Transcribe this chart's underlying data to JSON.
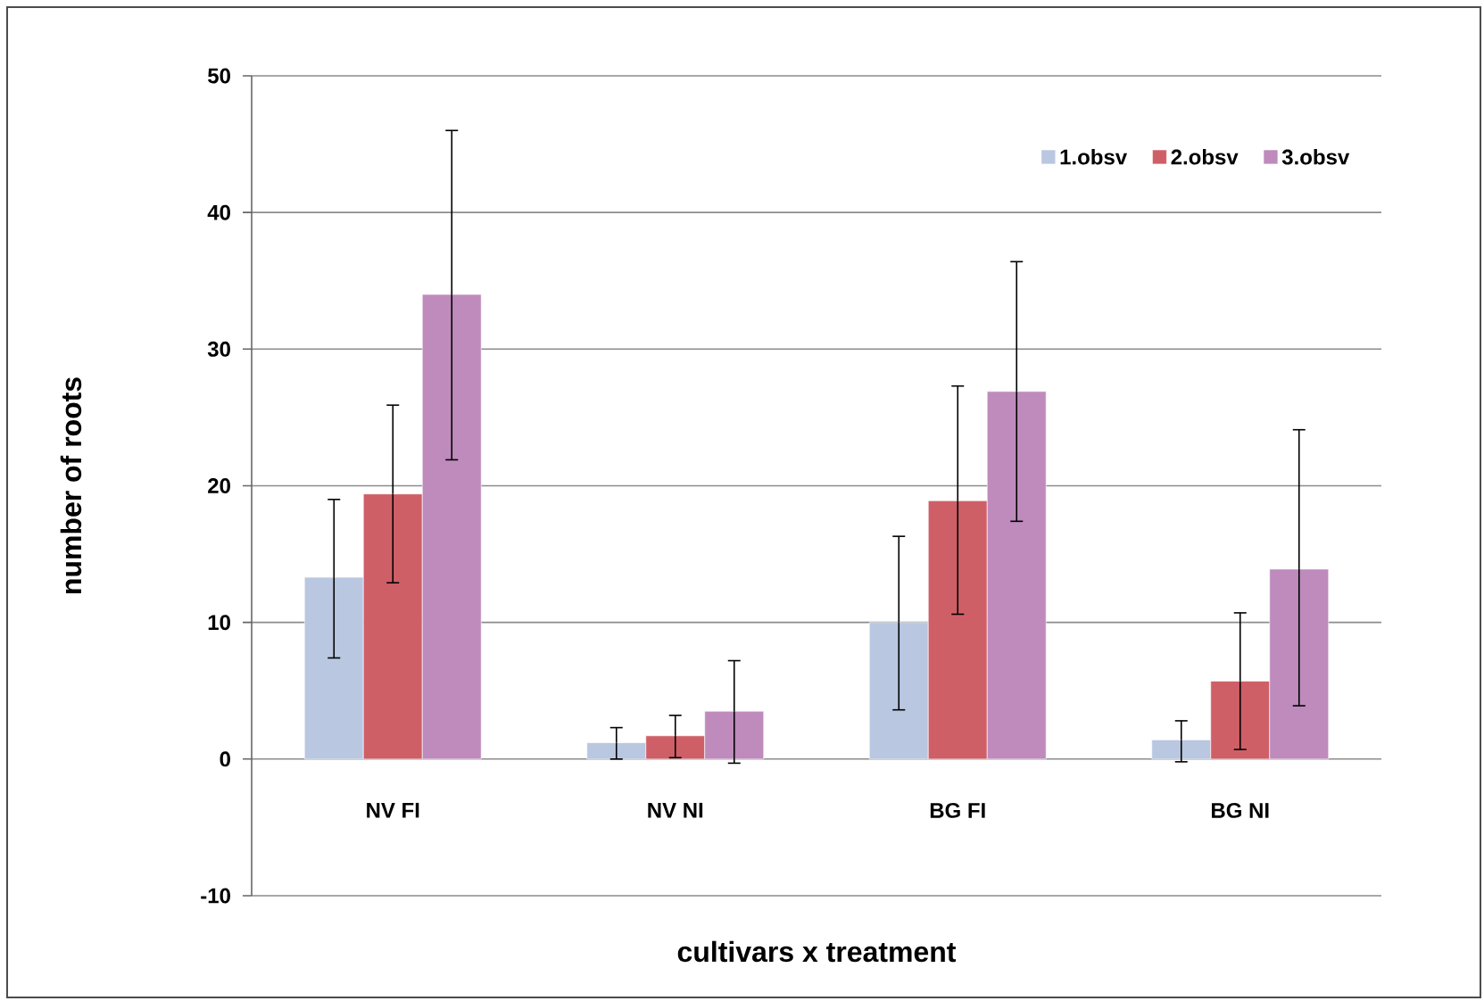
{
  "chart_data": {
    "type": "bar",
    "xlabel": "cultivars x treatment",
    "ylabel": "number of roots",
    "categories": [
      "NV FI",
      "NV NI",
      "BG FI",
      "BG NI"
    ],
    "series": [
      {
        "name": "1.obsv",
        "color": "#b9c7e0",
        "values": [
          13.3,
          1.2,
          10.0,
          1.4
        ],
        "errors": [
          [
            7.4,
            19.0
          ],
          [
            0.0,
            2.3
          ],
          [
            3.6,
            16.3
          ],
          [
            -0.2,
            2.8
          ]
        ]
      },
      {
        "name": "2.obsv",
        "color": "#cf5f67",
        "values": [
          19.4,
          1.7,
          18.9,
          5.7
        ],
        "errors": [
          [
            12.9,
            25.9
          ],
          [
            0.1,
            3.2
          ],
          [
            10.6,
            27.3
          ],
          [
            0.7,
            10.7
          ]
        ]
      },
      {
        "name": "3.obsv",
        "color": "#be8bbc",
        "values": [
          34.0,
          3.5,
          26.9,
          13.9
        ],
        "errors": [
          [
            21.9,
            46.0
          ],
          [
            -0.3,
            7.2
          ],
          [
            17.4,
            36.4
          ],
          [
            3.9,
            24.1
          ]
        ]
      }
    ],
    "ylim": [
      -10,
      50
    ],
    "yticks": [
      -10,
      0,
      10,
      20,
      30,
      40,
      50
    ],
    "grid": "y",
    "legend": "top right"
  }
}
